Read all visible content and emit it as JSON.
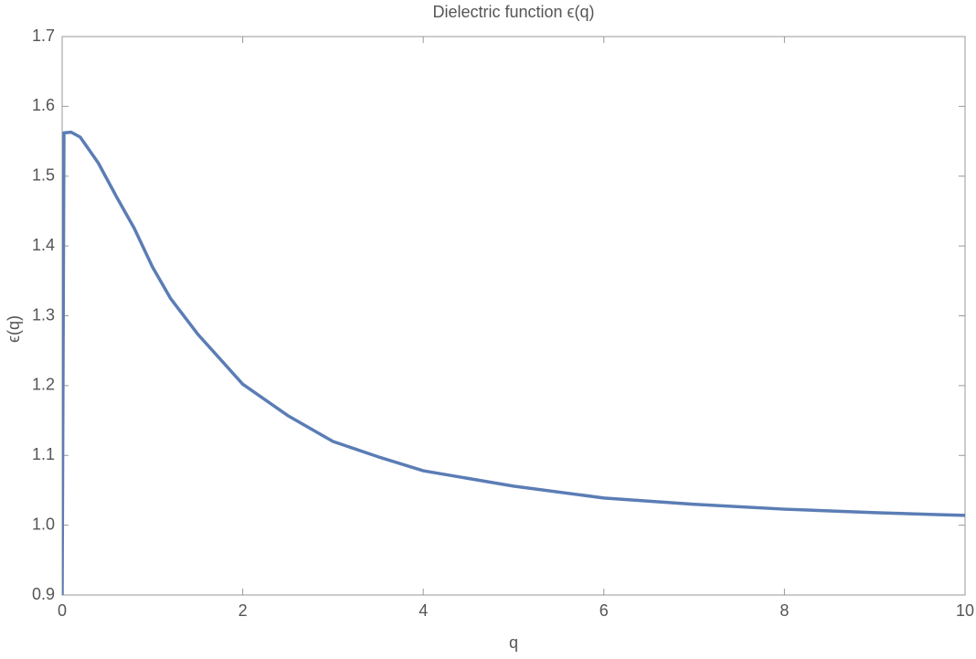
{
  "chart_data": {
    "type": "line",
    "title": "Dielectric function ϵ(q)",
    "x_label": "q",
    "y_label": "ϵ(q)",
    "series": [
      {
        "color": "#5b7db5",
        "x": [
          0,
          0.02,
          0.1,
          0.2,
          0.4,
          0.6,
          0.8,
          1.0,
          1.2,
          1.5,
          2,
          2.5,
          3,
          3.5,
          4,
          5,
          6,
          7,
          8,
          9,
          10
        ],
        "values": [
          0.9,
          1.562,
          1.563,
          1.556,
          1.519,
          1.471,
          1.425,
          1.37,
          1.325,
          1.274,
          1.202,
          1.157,
          1.12,
          1.098,
          1.078,
          1.056,
          1.039,
          1.03,
          1.023,
          1.018,
          1.014
        ]
      }
    ],
    "xlim": [
      0,
      10
    ],
    "xticks": [
      0,
      2,
      4,
      6,
      8,
      10
    ],
    "ylim": [
      0.9,
      1.7
    ],
    "yticks": [
      0.9,
      {
        "value": 1,
        "label": "1.0"
      },
      1.1,
      1.2,
      1.3,
      1.4,
      1.5,
      1.6,
      1.7
    ]
  }
}
